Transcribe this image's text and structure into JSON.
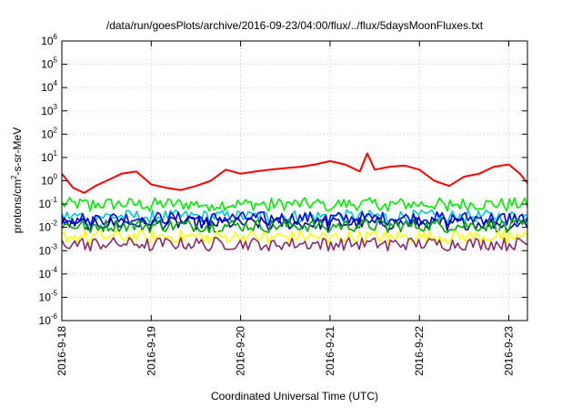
{
  "chart_data": {
    "type": "line",
    "title": "/data/run/goesPlots/archive/2016-09-23/04:00/flux/../flux/5daysMoonFluxes.txt",
    "xlabel": "Coordinated Universal Time (UTC)",
    "ylabel": {
      "pre": "protons/cm",
      "sup": "2",
      "post": "-s-sr-MeV"
    },
    "y_scale": "log",
    "ylim": [
      1e-06,
      1000000
    ],
    "y_ticks": [
      {
        "exp": "-6",
        "value": 1e-06
      },
      {
        "exp": "-5",
        "value": 1e-05
      },
      {
        "exp": "-4",
        "value": 0.0001
      },
      {
        "exp": "-3",
        "value": 0.001
      },
      {
        "exp": "-2",
        "value": 0.01
      },
      {
        "exp": "-1",
        "value": 0.1
      },
      {
        "exp": "0",
        "value": 1
      },
      {
        "exp": "1",
        "value": 10
      },
      {
        "exp": "2",
        "value": 100
      },
      {
        "exp": "3",
        "value": 1000
      },
      {
        "exp": "4",
        "value": 10000
      },
      {
        "exp": "5",
        "value": 100000
      },
      {
        "exp": "6",
        "value": 1000000
      }
    ],
    "x_range": [
      "2016-09-18",
      "2016-09-23T05:00"
    ],
    "x_ticks": [
      "2016-9-18",
      "2016-9-19",
      "2016-9-20",
      "2016-9-21",
      "2016-9-22",
      "2016-9-23"
    ],
    "grid": true,
    "legend": "none",
    "series": [
      {
        "color": "#ff0000",
        "x": [
          "2016-09-18T00:00",
          "2016-09-18T03:00",
          "2016-09-18T06:00",
          "2016-09-18T09:00",
          "2016-09-18T12:00",
          "2016-09-18T16:00",
          "2016-09-18T20:00",
          "2016-09-19T00:00",
          "2016-09-19T04:00",
          "2016-09-19T08:00",
          "2016-09-19T12:00",
          "2016-09-19T16:00",
          "2016-09-19T20:00",
          "2016-09-20T00:00",
          "2016-09-20T04:00",
          "2016-09-20T08:00",
          "2016-09-20T12:00",
          "2016-09-20T16:00",
          "2016-09-20T20:00",
          "2016-09-21T00:00",
          "2016-09-21T04:00",
          "2016-09-21T08:00",
          "2016-09-21T10:00",
          "2016-09-21T12:00",
          "2016-09-21T16:00",
          "2016-09-21T20:00",
          "2016-09-22T00:00",
          "2016-09-22T04:00",
          "2016-09-22T08:00",
          "2016-09-22T12:00",
          "2016-09-22T16:00",
          "2016-09-22T20:00",
          "2016-09-23T00:00",
          "2016-09-23T03:00",
          "2016-09-23T05:00"
        ],
        "values": [
          2.0,
          0.5,
          0.3,
          0.6,
          1.0,
          2.0,
          2.5,
          0.7,
          0.5,
          0.4,
          0.6,
          1.0,
          3.0,
          2.0,
          2.5,
          3.0,
          3.5,
          4.0,
          5.0,
          7.0,
          5.0,
          2.5,
          15.0,
          3.0,
          4.0,
          4.5,
          3.0,
          1.0,
          0.6,
          1.5,
          2.0,
          4.0,
          5.0,
          2.0,
          0.8
        ]
      },
      {
        "color": "#00ee00",
        "typical": 0.1,
        "noise": "fluctuating"
      },
      {
        "color": "#00cccc",
        "typical": 0.03,
        "noise": "fluctuating"
      },
      {
        "color": "#0000ff",
        "typical": 0.025,
        "noise": "fluctuating"
      },
      {
        "color": "#0000aa",
        "typical": 0.015,
        "noise": "fluctuating"
      },
      {
        "color": "#00aa00",
        "typical": 0.012,
        "noise": "fluctuating"
      },
      {
        "color": "#ffff00",
        "typical": 0.004,
        "noise": "fluctuating"
      },
      {
        "color": "#8b2a6a",
        "typical": 0.002,
        "noise": "fluctuating"
      }
    ]
  }
}
